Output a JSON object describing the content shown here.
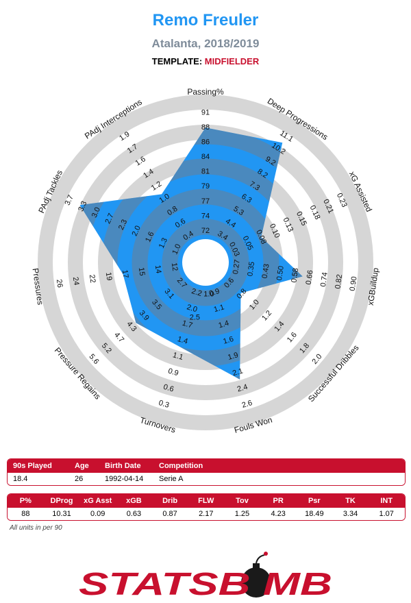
{
  "header": {
    "player": "Remo Freuler",
    "team_season": "Atalanta, 2018/2019",
    "template_label": "TEMPLATE:",
    "template_value": "MIDFIELDER"
  },
  "colors": {
    "title": "#2196f3",
    "subtitle": "#7f8c9a",
    "accent": "#c8102e",
    "ring_gray": "#d6d6d6",
    "fill_blue": "#2196f3",
    "overlap_gray": "#6e7f91"
  },
  "chart_data": {
    "type": "radar",
    "title": "Remo Freuler",
    "rings": 5,
    "axes": [
      {
        "label": "Passing%",
        "ticks": [
          "72",
          "74",
          "77",
          "79",
          "81",
          "84",
          "86",
          "88",
          "91"
        ],
        "value": 88,
        "min": 72,
        "max": 91
      },
      {
        "label": "Deep Progressions",
        "ticks": [
          "3.4",
          "4.4",
          "5.3",
          "6.3",
          "7.3",
          "8.2",
          "9.2",
          "10.2",
          "11.1"
        ],
        "value": 10.31,
        "min": 3.4,
        "max": 11.1
      },
      {
        "label": "xG Assisted",
        "ticks": [
          "0.03",
          "0.05",
          "0.08",
          "0.10",
          "0.13",
          "0.15",
          "0.18",
          "0.21",
          "0.23"
        ],
        "value": 0.09,
        "min": 0.03,
        "max": 0.23
      },
      {
        "label": "xGBuildup",
        "ticks": [
          "0.27",
          "0.35",
          "0.43",
          "0.50",
          "0.58",
          "0.66",
          "0.74",
          "0.82",
          "0.90"
        ],
        "value": 0.63,
        "min": 0.27,
        "max": 0.9
      },
      {
        "label": "Successful Dribbles",
        "ticks": [
          "0.6",
          "0.8",
          "1.0",
          "1.2",
          "1.4",
          "1.6",
          "1.8",
          "2.0"
        ],
        "value": 0.87,
        "min": 0.6,
        "max": 2.0
      },
      {
        "label": "Fouls Won",
        "ticks": [
          "0.9",
          "1.1",
          "1.4",
          "1.6",
          "1.9",
          "2.1",
          "2.4",
          "2.6"
        ],
        "value": 2.17,
        "min": 0.9,
        "max": 2.6
      },
      {
        "label": "Turnovers",
        "ticks": [
          "2.2",
          "2.0",
          "1.7",
          "1.4",
          "1.1",
          "0.9",
          "0.6",
          "0.3"
        ],
        "value": 1.25,
        "min": 2.2,
        "max": 0.3
      },
      {
        "label": "Pressure Regains",
        "ticks": [
          "2.7",
          "3.1",
          "3.5",
          "3.9",
          "4.3",
          "4.7",
          "5.2",
          "5.6"
        ],
        "value": 4.23,
        "min": 2.7,
        "max": 5.6
      },
      {
        "label": "Pressures",
        "ticks": [
          "12",
          "14",
          "15",
          "17",
          "19",
          "22",
          "24",
          "26"
        ],
        "value": 18.49,
        "min": 12,
        "max": 26
      },
      {
        "label": "PAdj Tackles",
        "ticks": [
          "1.0",
          "1.3",
          "1.6",
          "2.0",
          "2.3",
          "2.7",
          "3.0",
          "3.3",
          "3.7"
        ],
        "value": 3.34,
        "min": 1.0,
        "max": 3.7
      },
      {
        "label": "PAdj Interceptions",
        "ticks": [
          "0.4",
          "0.6",
          "0.8",
          "1.0",
          "1.2",
          "1.4",
          "1.6",
          "1.7",
          "1.9"
        ],
        "value": 1.07,
        "min": 0.4,
        "max": 1.9
      }
    ],
    "extra_tick_labels": [
      "2.5",
      "1.0"
    ]
  },
  "info_table": {
    "headers": [
      "90s Played",
      "Age",
      "Birth Date",
      "Competition"
    ],
    "values": [
      "18.4",
      "26",
      "1992-04-14",
      "Serie A"
    ]
  },
  "stats_table": {
    "headers": [
      "P%",
      "DProg",
      "xG Asst",
      "xGB",
      "Drib",
      "FLW",
      "Tov",
      "PR",
      "Psr",
      "TK",
      "INT"
    ],
    "values": [
      "88",
      "10.31",
      "0.09",
      "0.63",
      "0.87",
      "2.17",
      "1.25",
      "4.23",
      "18.49",
      "3.34",
      "1.07"
    ]
  },
  "footnote": "All units in per 90",
  "logo_text": "STATSBOMB"
}
